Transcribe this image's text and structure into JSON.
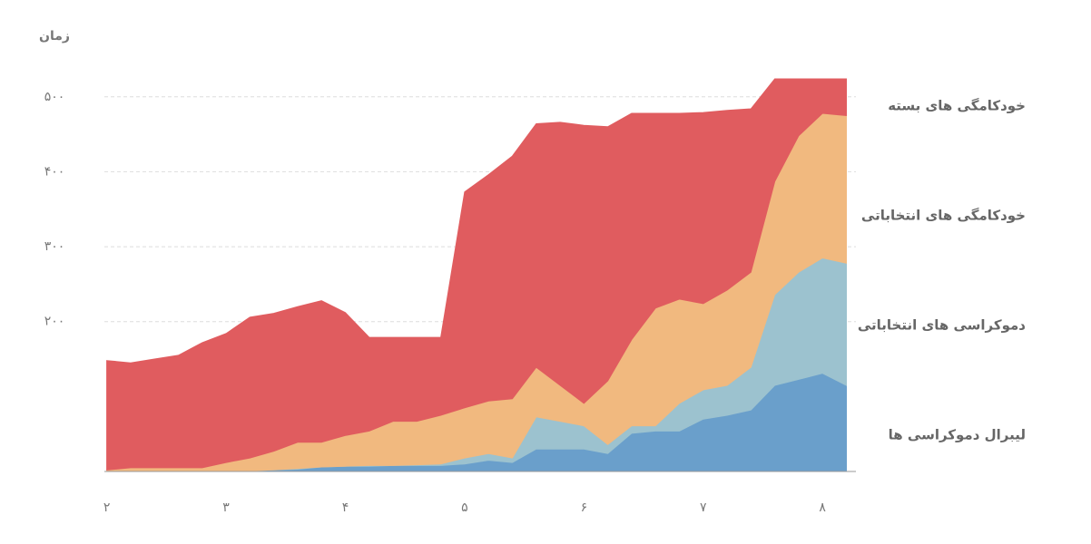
{
  "chart_data": {
    "type": "stacked-area",
    "y_label": "زمان",
    "x": [
      2,
      2.2,
      2.4,
      2.6,
      2.8,
      3,
      3.2,
      3.4,
      3.6,
      3.8,
      4,
      4.2,
      4.4,
      4.6,
      4.8,
      5,
      5.2,
      5.4,
      5.6,
      5.8,
      6,
      6.2,
      6.4,
      6.6,
      6.8,
      7,
      7.2,
      7.4,
      7.6,
      7.8,
      8,
      8.2
    ],
    "series": [
      {
        "name": "لیبرال دموکراسی ها",
        "color": "#6a9fcb",
        "values": [
          0,
          0,
          0,
          0,
          0,
          0,
          1,
          2,
          3,
          6,
          7,
          7,
          8,
          8,
          8,
          10,
          15,
          12,
          30,
          30,
          30,
          24,
          51,
          54,
          54,
          70,
          75,
          82,
          115,
          123,
          131,
          115
        ]
      },
      {
        "name": "دموکراسی های انتخاباتی",
        "color": "#9cc2cf",
        "values": [
          0,
          0,
          0,
          0,
          0,
          0,
          0,
          0,
          1,
          0,
          0,
          1,
          0,
          1,
          2,
          8,
          9,
          6,
          43,
          37,
          31,
          12,
          10,
          7,
          37,
          39,
          40,
          57,
          121,
          143,
          154,
          163
        ]
      },
      {
        "name": "خودکامگی های انتخاباتی",
        "color": "#f1b97f",
        "values": [
          2,
          5,
          5,
          5,
          5,
          12,
          17,
          25,
          35,
          33,
          41,
          46,
          59,
          58,
          65,
          67,
          70,
          79,
          66,
          48,
          30,
          85,
          115,
          157,
          139,
          115,
          127,
          127,
          151,
          182,
          193,
          197
        ]
      },
      {
        "name": "خودکامگی های بسته",
        "color": "#e05c5f",
        "values": [
          146,
          140,
          145,
          150,
          167,
          172,
          188,
          184,
          181,
          189,
          164,
          125,
          112,
          112,
          104,
          288,
          302,
          324,
          325,
          351,
          371,
          339,
          302,
          260,
          248,
          255,
          240,
          218,
          137,
          76,
          46,
          49
        ]
      }
    ],
    "xlim": [
      1.98,
      8.28
    ],
    "xticks": [
      {
        "value": 2,
        "label": "۲"
      },
      {
        "value": 3,
        "label": "۳"
      },
      {
        "value": 4,
        "label": "۴"
      },
      {
        "value": 5,
        "label": "۵"
      },
      {
        "value": 6,
        "label": "۶"
      },
      {
        "value": 7,
        "label": "۷"
      },
      {
        "value": 8,
        "label": "۸"
      }
    ],
    "ylim": [
      0,
      530
    ],
    "yticks": [
      {
        "value": 200,
        "label": "۲۰۰"
      },
      {
        "value": 300,
        "label": "۳۰۰"
      },
      {
        "value": 400,
        "label": "۴۰۰"
      },
      {
        "value": 500,
        "label": "۵۰۰"
      }
    ],
    "grid": true
  }
}
